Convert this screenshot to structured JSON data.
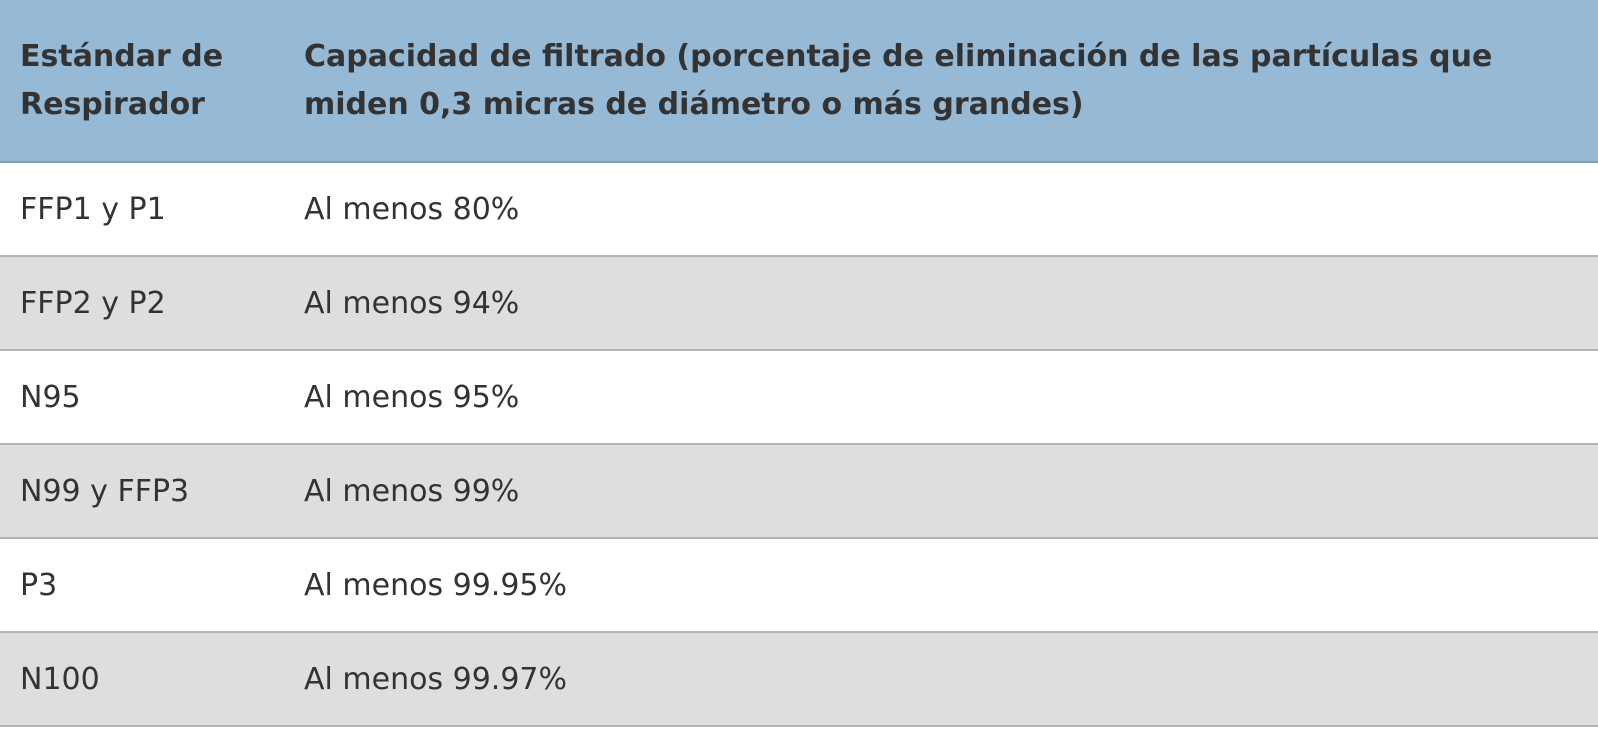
{
  "table": {
    "headers": {
      "standard": "Estándar de Respirador",
      "capacity": "Capacidad de filtrado (porcentaje de eliminación de las partículas que miden 0,3 micras de diámetro o más grandes)"
    },
    "rows": [
      {
        "standard": "FFP1 y P1",
        "capacity": "Al menos 80%"
      },
      {
        "standard": "FFP2 y P2",
        "capacity": "Al menos 94%"
      },
      {
        "standard": "N95",
        "capacity": "Al menos 95%"
      },
      {
        "standard": "N99 y FFP3",
        "capacity": "Al menos 99%"
      },
      {
        "standard": "P3",
        "capacity": "Al menos 99.95%"
      },
      {
        "standard": "N100",
        "capacity": "Al menos 99.97%"
      }
    ]
  },
  "colors": {
    "header_bg": "#96b9d6",
    "row_alt_bg": "#dedede",
    "row_bg": "#ffffff",
    "text": "#333333"
  }
}
